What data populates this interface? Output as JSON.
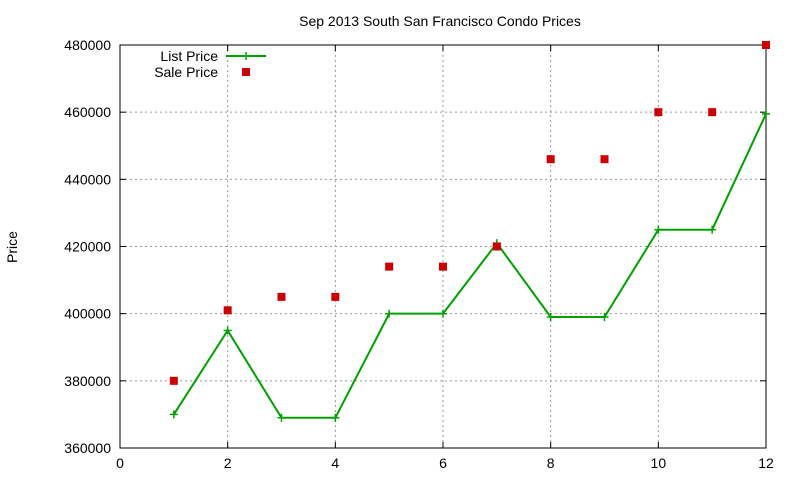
{
  "chart_data": {
    "type": "line",
    "title": "Sep 2013 South San Francisco Condo Prices",
    "xlabel": "",
    "ylabel": "Price",
    "xlim": [
      0,
      12
    ],
    "ylim": [
      360000,
      480000
    ],
    "xticks": [
      0,
      2,
      4,
      6,
      8,
      10,
      12
    ],
    "yticks": [
      360000,
      380000,
      400000,
      420000,
      440000,
      460000,
      480000
    ],
    "grid": true,
    "legend_position": "top-left",
    "series": [
      {
        "name": "List Price",
        "style": "line-plus",
        "color": "#00a000",
        "x": [
          1,
          2,
          3,
          4,
          5,
          6,
          7,
          8,
          9,
          10,
          11,
          12
        ],
        "values": [
          370000,
          395000,
          369000,
          369000,
          400000,
          400000,
          421000,
          399000,
          399000,
          425000,
          425000,
          459500
        ]
      },
      {
        "name": "Sale Price",
        "style": "square-points",
        "color": "#cc0000",
        "x": [
          1,
          2,
          3,
          4,
          5,
          6,
          7,
          8,
          9,
          10,
          11,
          12
        ],
        "values": [
          380000,
          401000,
          405000,
          405000,
          414000,
          414000,
          420000,
          446000,
          446000,
          460000,
          460000,
          480000
        ]
      }
    ]
  }
}
